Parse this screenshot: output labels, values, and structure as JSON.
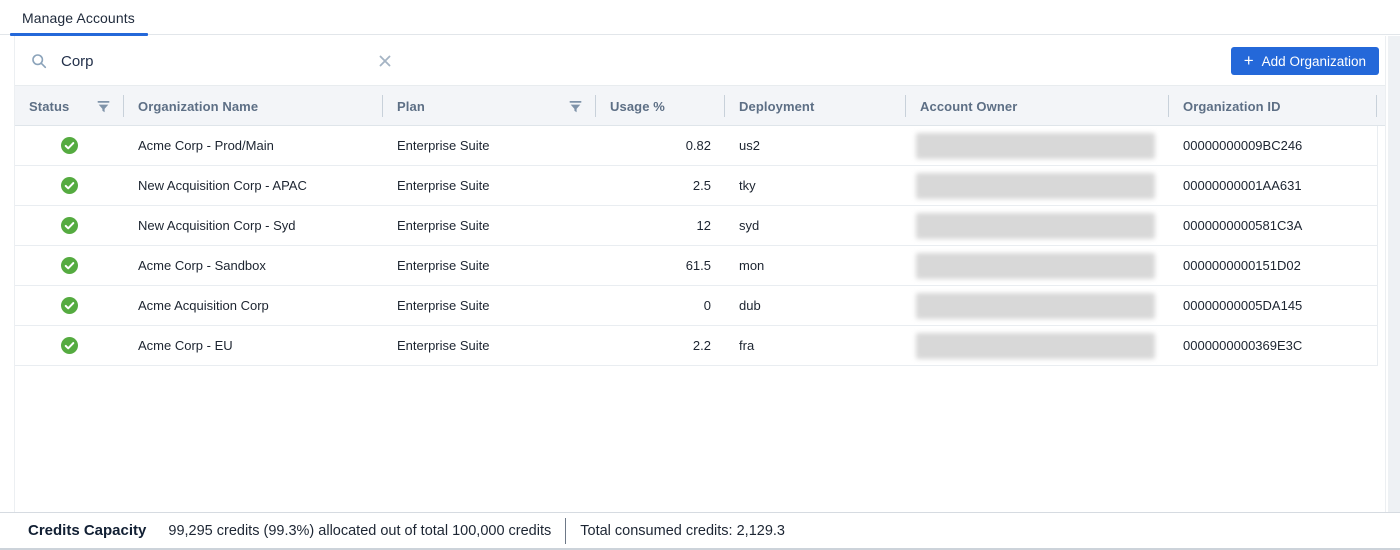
{
  "tab": {
    "label": "Manage Accounts"
  },
  "search": {
    "value": "Corp"
  },
  "add_button": {
    "label": "Add Organization",
    "plus": "+"
  },
  "icons": {
    "search": "magnifier-icon",
    "clear": "x-close-icon",
    "filter": "funnel-icon",
    "status_active": "green-check-circle-icon",
    "add": "plus-icon"
  },
  "colors": {
    "accent_blue": "#2468d9",
    "status_green": "#55ab40",
    "header_bg": "#f3f5f8",
    "redacted_gray": "#d8d8d8"
  },
  "table": {
    "columns": [
      {
        "label": "Status",
        "filter": true
      },
      {
        "label": "Organization Name",
        "filter": false
      },
      {
        "label": "Plan",
        "filter": true
      },
      {
        "label": "Usage %",
        "filter": false
      },
      {
        "label": "Deployment",
        "filter": false
      },
      {
        "label": "Account Owner",
        "filter": false
      },
      {
        "label": "Organization ID",
        "filter": false
      }
    ],
    "rows": [
      {
        "status": "active",
        "name": "Acme Corp - Prod/Main",
        "plan": "Enterprise Suite",
        "usage": "0.82",
        "deployment": "us2",
        "account_owner_redacted": true,
        "org_id": "00000000009BC246"
      },
      {
        "status": "active",
        "name": "New Acquisition Corp - APAC",
        "plan": "Enterprise Suite",
        "usage": "2.5",
        "deployment": "tky",
        "account_owner_redacted": true,
        "org_id": "00000000001AA631"
      },
      {
        "status": "active",
        "name": "New Acquisition Corp - Syd",
        "plan": "Enterprise Suite",
        "usage": "12",
        "deployment": "syd",
        "account_owner_redacted": true,
        "org_id": "0000000000581C3A"
      },
      {
        "status": "active",
        "name": "Acme Corp - Sandbox",
        "plan": "Enterprise Suite",
        "usage": "61.5",
        "deployment": "mon",
        "account_owner_redacted": true,
        "org_id": "0000000000151D02"
      },
      {
        "status": "active",
        "name": "Acme Acquisition Corp",
        "plan": "Enterprise Suite",
        "usage": "0",
        "deployment": "dub",
        "account_owner_redacted": true,
        "org_id": "00000000005DA145"
      },
      {
        "status": "active",
        "name": "Acme Corp - EU",
        "plan": "Enterprise Suite",
        "usage": "2.2",
        "deployment": "fra",
        "account_owner_redacted": true,
        "org_id": "0000000000369E3C"
      }
    ]
  },
  "footer": {
    "title": "Credits Capacity",
    "allocation": "99,295 credits (99.3%) allocated out of total 100,000 credits",
    "consumed": "Total consumed credits: 2,129.3"
  }
}
